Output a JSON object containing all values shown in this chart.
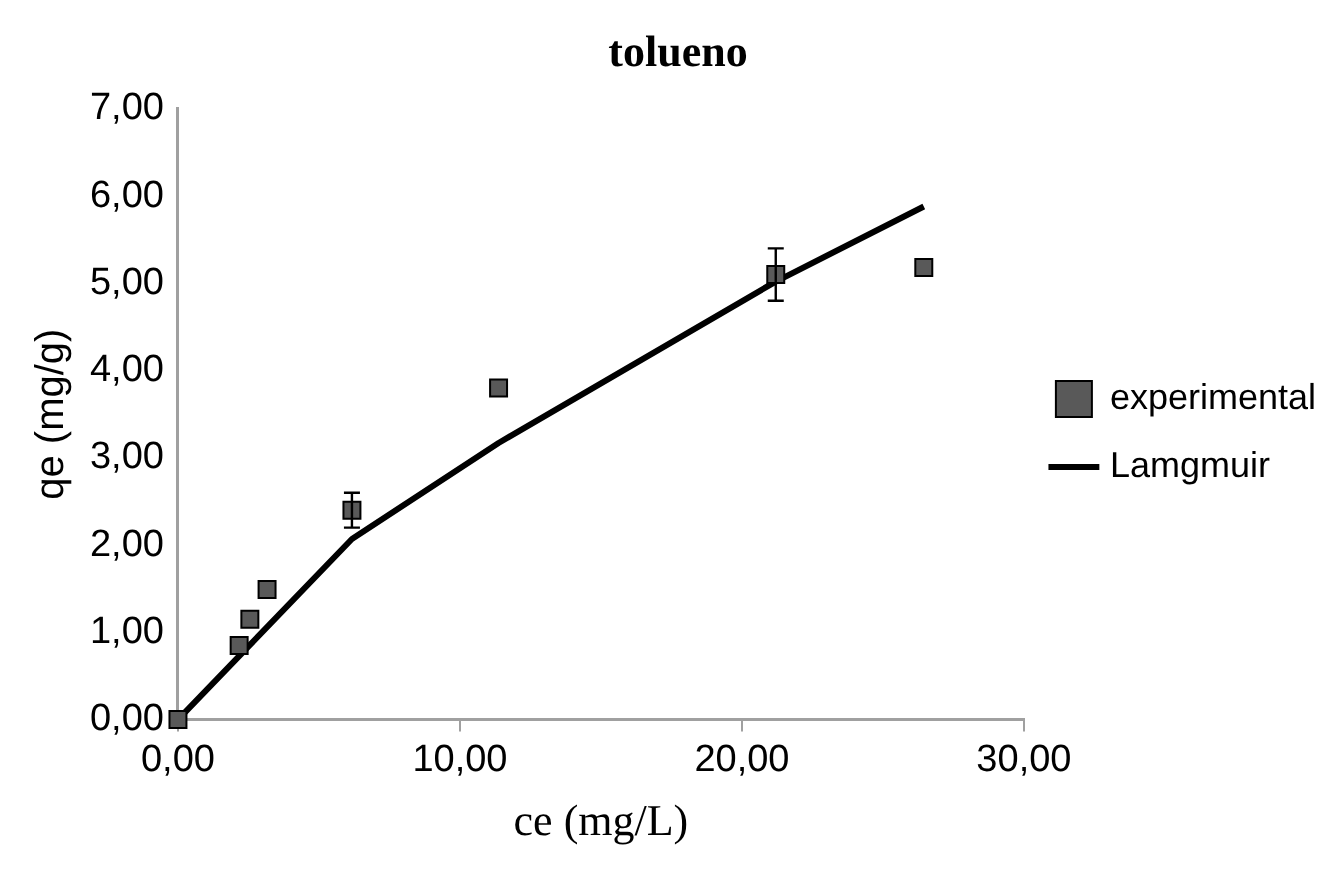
{
  "chart_data": {
    "type": "scatter",
    "title": "tolueno",
    "xlabel": "ce (mg/L)",
    "ylabel": "qe (mg/g)",
    "xlim": [
      0,
      30
    ],
    "ylim": [
      0,
      7
    ],
    "xticks": [
      {
        "value": 0,
        "label": "0,00"
      },
      {
        "value": 10,
        "label": "10,00"
      },
      {
        "value": 20,
        "label": "20,00"
      },
      {
        "value": 30,
        "label": "30,00"
      }
    ],
    "yticks": [
      {
        "value": 0,
        "label": "0,00"
      },
      {
        "value": 1,
        "label": "1,00"
      },
      {
        "value": 2,
        "label": "2,00"
      },
      {
        "value": 3,
        "label": "3,00"
      },
      {
        "value": 4,
        "label": "4,00"
      },
      {
        "value": 5,
        "label": "5,00"
      },
      {
        "value": 6,
        "label": "6,00"
      },
      {
        "value": 7,
        "label": "7,00"
      }
    ],
    "grid": false,
    "legend": "right",
    "series": [
      {
        "name": "experimental",
        "type": "scatter",
        "marker": "square",
        "color": "#595959",
        "x": [
          0,
          2.17,
          2.55,
          3.16,
          6.17,
          11.37,
          21.2,
          26.45
        ],
        "values": [
          0,
          0.85,
          1.15,
          1.49,
          2.4,
          3.8,
          5.1,
          5.18
        ],
        "errors": [
          null,
          null,
          null,
          null,
          0.2,
          null,
          0.3,
          null
        ]
      },
      {
        "name": "Lamgmuir",
        "type": "line",
        "marker": "none",
        "color": "#000000",
        "x": [
          0,
          6.17,
          11.37,
          21.2,
          26.45
        ],
        "values": [
          0,
          2.07,
          3.17,
          5.02,
          5.88
        ]
      }
    ]
  }
}
